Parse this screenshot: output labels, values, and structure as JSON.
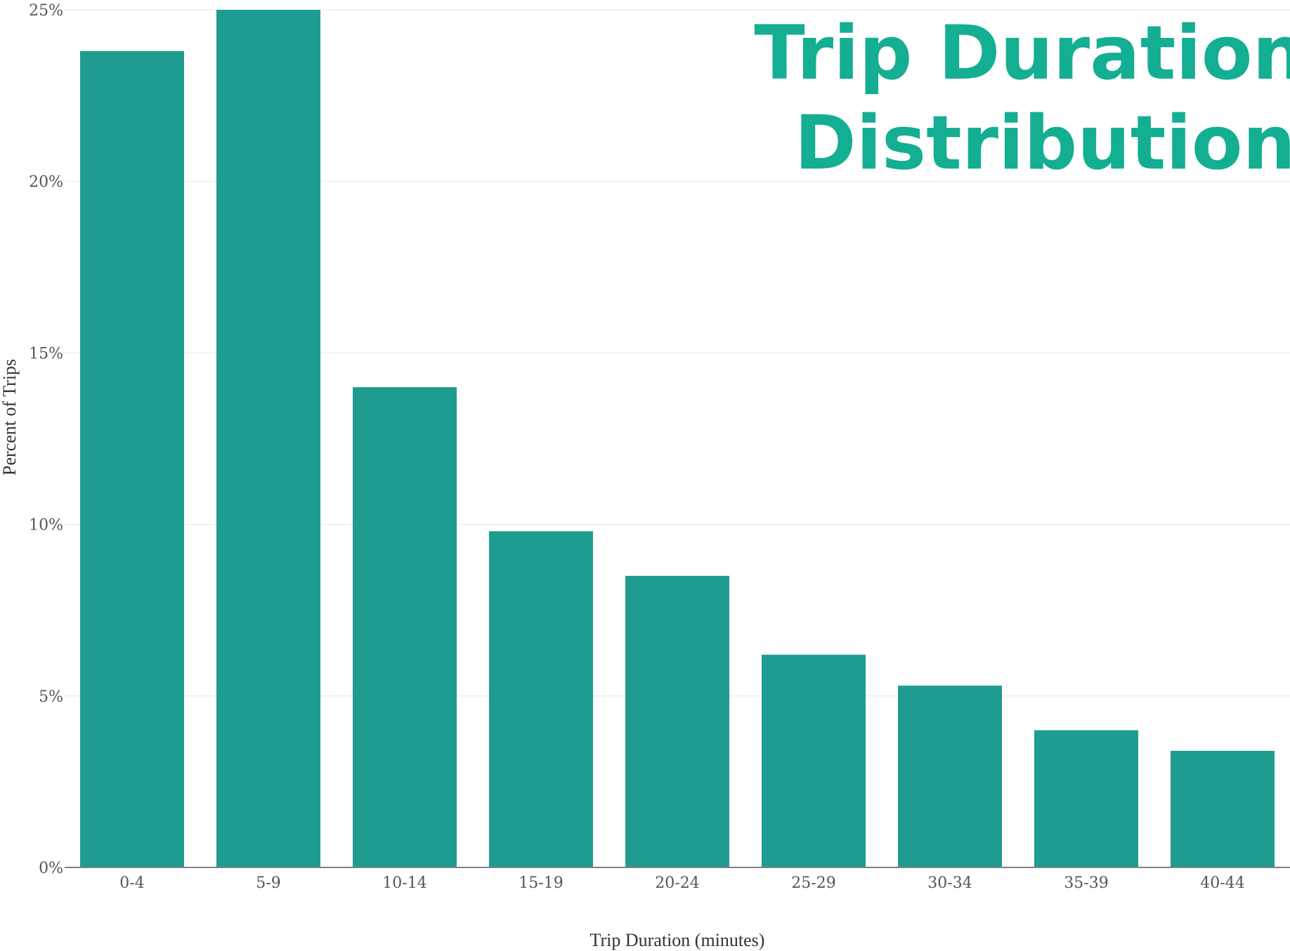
{
  "chart_data": {
    "type": "bar",
    "title_lines": [
      "Trip Duration",
      "Distribution"
    ],
    "xlabel": "Trip Duration (minutes)",
    "ylabel": "Percent of Trips",
    "categories": [
      "0-4",
      "5-9",
      "10-14",
      "15-19",
      "20-24",
      "25-29",
      "30-34",
      "35-39",
      "40-44"
    ],
    "values": [
      23.8,
      25.0,
      14.0,
      9.8,
      8.5,
      6.2,
      5.3,
      4.0,
      3.4
    ],
    "ylim": [
      0,
      25
    ],
    "yticks": [
      0,
      5,
      10,
      15,
      20,
      25
    ],
    "ytick_labels": [
      "0%",
      "5%",
      "10%",
      "15%",
      "20%",
      "25%"
    ],
    "grid": true,
    "bar_color": "#1E9C8F",
    "title_color": "#14AE93"
  }
}
